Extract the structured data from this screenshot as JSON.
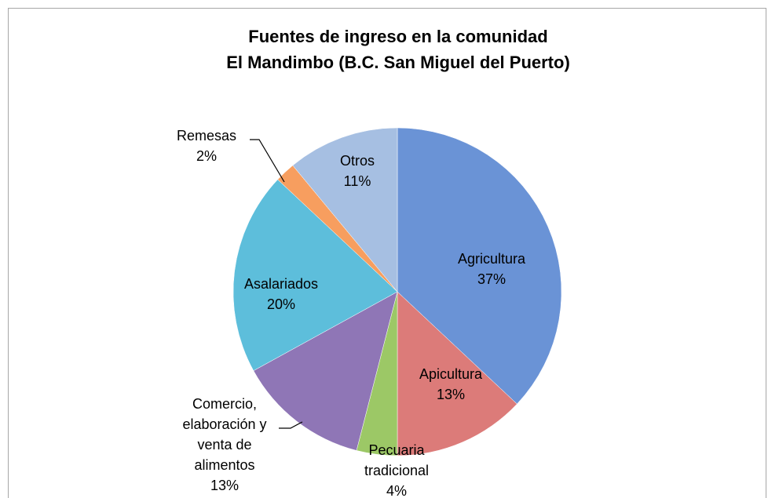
{
  "chart_data": {
    "type": "pie",
    "title": "Fuentes de ingreso en la comunidad\nEl Mandimbo (B.C. San Miguel del Puerto)",
    "categories": [
      "Agricultura",
      "Apicultura",
      "Pecuaria tradicional",
      "Comercio, elaboración y venta de alimentos",
      "Asalariados",
      "Remesas",
      "Otros"
    ],
    "values": [
      37,
      13,
      4,
      13,
      20,
      2,
      11
    ],
    "value_labels": [
      "37%",
      "13%",
      "4%",
      "13%",
      "20%",
      "2%",
      "11%"
    ],
    "colors": [
      "#6a93d6",
      "#dc7b79",
      "#9cc866",
      "#8f76b6",
      "#5dbedb",
      "#f79e5f",
      "#a6bfe2"
    ]
  }
}
